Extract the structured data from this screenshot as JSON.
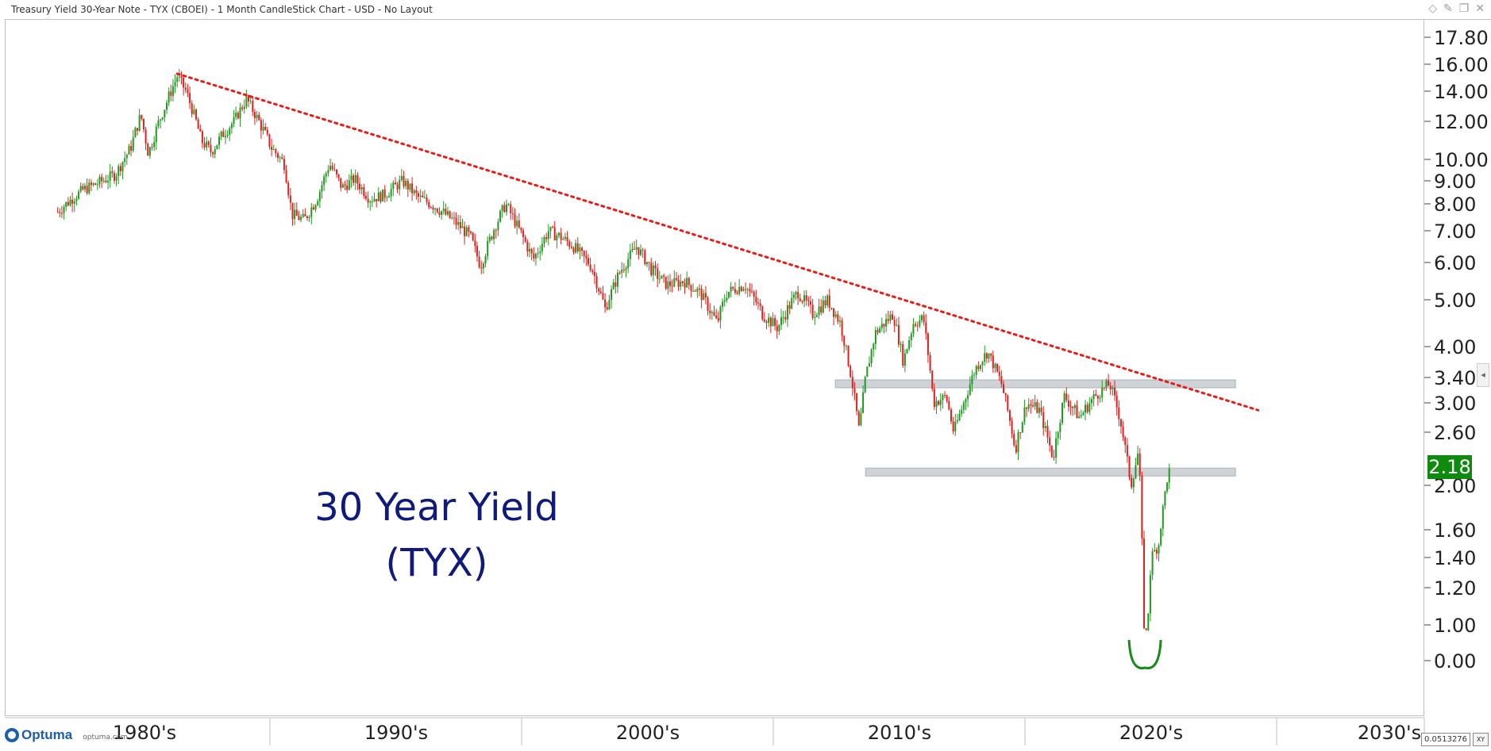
{
  "window": {
    "title": "Treasury Yield 30-Year Note - TYX (CBOEI) - 1 Month CandleStick Chart - USD - No Layout"
  },
  "icons": [
    "diamond-icon",
    "pin-icon",
    "restore-icon",
    "close-icon",
    "collapse-arrow-icon",
    "optuma-logo-icon"
  ],
  "footer": {
    "logo_text": "Optuma",
    "logo_url": "optuma.com",
    "corner_value": "0.0513276",
    "xy_label": "XY"
  },
  "annotation": {
    "line1": "30 Year Yield",
    "line2": "(TYX)"
  },
  "colors": {
    "up": "#1f9a1f",
    "down": "#e0201c",
    "trendline": "#e0201c",
    "annotation": "#0f1a7a",
    "last_tag": "#0f8a0f",
    "zone": "#cfd3d8",
    "arc": "#1a8a1a"
  },
  "chart_data": {
    "type": "candlestick",
    "symbol": "TYX",
    "timeframe": "1 Month",
    "y_scale": "custom-log",
    "y_ticks": [
      "17.80",
      "16.00",
      "14.00",
      "12.00",
      "10.00",
      "9.00",
      "8.00",
      "7.00",
      "6.00",
      "5.00",
      "4.00",
      "3.40",
      "3.00",
      "2.60",
      "2.00",
      "1.60",
      "1.40",
      "1.20",
      "1.00",
      "0.00"
    ],
    "x_ticks": [
      "1980's",
      "1990's",
      "2000's",
      "2010's",
      "2020's",
      "2030's"
    ],
    "last_value": "2.18",
    "series": [
      {
        "year": 1977.0,
        "value": 7.7
      },
      {
        "year": 1978.0,
        "value": 8.6
      },
      {
        "year": 1978.6,
        "value": 8.9
      },
      {
        "year": 1979.3,
        "value": 9.3
      },
      {
        "year": 1979.9,
        "value": 10.6
      },
      {
        "year": 1980.3,
        "value": 12.4
      },
      {
        "year": 1980.6,
        "value": 10.3
      },
      {
        "year": 1981.2,
        "value": 12.7
      },
      {
        "year": 1981.75,
        "value": 15.1
      },
      {
        "year": 1982.1,
        "value": 14.0
      },
      {
        "year": 1982.7,
        "value": 11.0
      },
      {
        "year": 1983.1,
        "value": 10.4
      },
      {
        "year": 1983.6,
        "value": 11.4
      },
      {
        "year": 1984.0,
        "value": 12.0
      },
      {
        "year": 1984.5,
        "value": 13.5
      },
      {
        "year": 1985.0,
        "value": 12.0
      },
      {
        "year": 1985.5,
        "value": 10.6
      },
      {
        "year": 1986.0,
        "value": 9.8
      },
      {
        "year": 1986.3,
        "value": 7.6
      },
      {
        "year": 1986.8,
        "value": 7.4
      },
      {
        "year": 1987.3,
        "value": 8.2
      },
      {
        "year": 1987.8,
        "value": 9.8
      },
      {
        "year": 1988.3,
        "value": 8.7
      },
      {
        "year": 1988.8,
        "value": 9.1
      },
      {
        "year": 1989.4,
        "value": 8.2
      },
      {
        "year": 1990.0,
        "value": 8.4
      },
      {
        "year": 1990.7,
        "value": 9.0
      },
      {
        "year": 1991.3,
        "value": 8.3
      },
      {
        "year": 1992.0,
        "value": 7.9
      },
      {
        "year": 1992.7,
        "value": 7.4
      },
      {
        "year": 1993.4,
        "value": 6.8
      },
      {
        "year": 1993.8,
        "value": 5.9
      },
      {
        "year": 1994.3,
        "value": 7.0
      },
      {
        "year": 1994.8,
        "value": 8.0
      },
      {
        "year": 1995.3,
        "value": 7.1
      },
      {
        "year": 1995.9,
        "value": 6.1
      },
      {
        "year": 1996.5,
        "value": 7.0
      },
      {
        "year": 1997.0,
        "value": 6.8
      },
      {
        "year": 1997.5,
        "value": 6.5
      },
      {
        "year": 1998.2,
        "value": 5.9
      },
      {
        "year": 1998.75,
        "value": 4.8
      },
      {
        "year": 1999.3,
        "value": 5.7
      },
      {
        "year": 2000.0,
        "value": 6.5
      },
      {
        "year": 2000.6,
        "value": 5.8
      },
      {
        "year": 2001.2,
        "value": 5.4
      },
      {
        "year": 2001.9,
        "value": 5.5
      },
      {
        "year": 2002.5,
        "value": 5.2
      },
      {
        "year": 2003.2,
        "value": 4.5
      },
      {
        "year": 2003.6,
        "value": 5.2
      },
      {
        "year": 2004.3,
        "value": 5.4
      },
      {
        "year": 2005.0,
        "value": 4.7
      },
      {
        "year": 2005.6,
        "value": 4.4
      },
      {
        "year": 2006.4,
        "value": 5.2
      },
      {
        "year": 2007.0,
        "value": 4.7
      },
      {
        "year": 2007.6,
        "value": 5.0
      },
      {
        "year": 2008.1,
        "value": 4.5
      },
      {
        "year": 2008.85,
        "value": 2.6
      },
      {
        "year": 2009.1,
        "value": 3.4
      },
      {
        "year": 2009.5,
        "value": 4.3
      },
      {
        "year": 2010.2,
        "value": 4.7
      },
      {
        "year": 2010.6,
        "value": 3.7
      },
      {
        "year": 2011.0,
        "value": 4.5
      },
      {
        "year": 2011.4,
        "value": 4.6
      },
      {
        "year": 2011.8,
        "value": 3.0
      },
      {
        "year": 2012.3,
        "value": 3.1
      },
      {
        "year": 2012.6,
        "value": 2.6
      },
      {
        "year": 2013.0,
        "value": 3.0
      },
      {
        "year": 2013.5,
        "value": 3.6
      },
      {
        "year": 2013.95,
        "value": 3.9
      },
      {
        "year": 2014.5,
        "value": 3.3
      },
      {
        "year": 2015.05,
        "value": 2.4
      },
      {
        "year": 2015.5,
        "value": 3.0
      },
      {
        "year": 2016.0,
        "value": 2.9
      },
      {
        "year": 2016.55,
        "value": 2.3
      },
      {
        "year": 2017.0,
        "value": 3.1
      },
      {
        "year": 2017.6,
        "value": 2.8
      },
      {
        "year": 2018.2,
        "value": 3.1
      },
      {
        "year": 2018.8,
        "value": 3.3
      },
      {
        "year": 2019.2,
        "value": 2.8
      },
      {
        "year": 2019.65,
        "value": 2.0
      },
      {
        "year": 2019.95,
        "value": 2.4
      },
      {
        "year": 2020.2,
        "value": 0.7
      },
      {
        "year": 2020.45,
        "value": 1.4
      },
      {
        "year": 2020.75,
        "value": 1.5
      },
      {
        "year": 2021.1,
        "value": 2.1
      },
      {
        "year": 2021.2,
        "value": 2.18
      }
    ],
    "trendline": {
      "start": {
        "year": 1981.75,
        "value": 15.3
      },
      "end": {
        "year": 2024.7,
        "value": 2.9
      }
    },
    "zones": [
      {
        "start_year": 2007.9,
        "end_year": 2023.8,
        "value": 3.3
      },
      {
        "start_year": 2009.1,
        "end_year": 2023.8,
        "value": 2.15
      }
    ],
    "low_marker": {
      "year": 2020.2,
      "value": 0.0
    }
  }
}
